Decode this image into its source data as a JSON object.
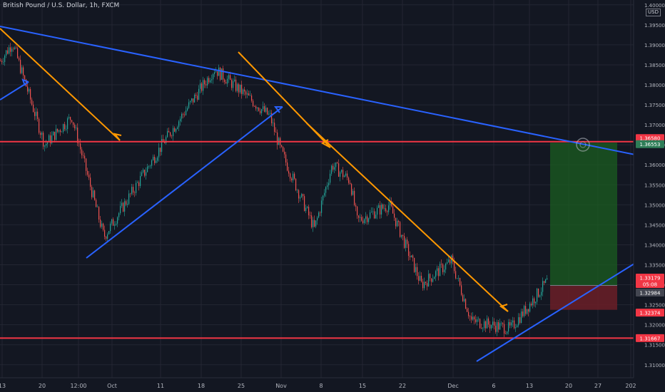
{
  "header": {
    "title": "British Pound / U.S. Dollar, 1h, FXCM",
    "currency": "USD"
  },
  "chart_data": {
    "type": "candlestick",
    "ylim": [
      1.308,
      1.4005
    ],
    "y_ticks": [
      "1.40000",
      "1.39500",
      "1.39000",
      "1.38500",
      "1.38000",
      "1.37500",
      "1.37000",
      "1.36500",
      "1.36000",
      "1.35500",
      "1.35000",
      "1.34500",
      "1.34000",
      "1.33500",
      "1.33000",
      "1.32500",
      "1.32000",
      "1.31500",
      "1.31000"
    ],
    "x_ticks": [
      "13",
      "20",
      "12:00",
      "Oct",
      "11",
      "18",
      "25",
      "Nov",
      "8",
      "15",
      "22",
      "Dec",
      "6",
      "13",
      "20",
      "27",
      "202"
    ],
    "price_path": [
      [
        1.386,
        "13"
      ],
      [
        1.3905,
        "13+"
      ],
      [
        1.365,
        "20"
      ],
      [
        1.372,
        "12:00"
      ],
      [
        1.342,
        "Oct-"
      ],
      [
        1.366,
        "11"
      ],
      [
        1.384,
        "18"
      ],
      [
        1.378,
        "25"
      ],
      [
        1.372,
        "Nov-"
      ],
      [
        1.364,
        "Nov"
      ],
      [
        1.344,
        "Nov+"
      ],
      [
        1.36,
        "8"
      ],
      [
        1.356,
        "15"
      ],
      [
        1.346,
        "15+"
      ],
      [
        1.35,
        "22"
      ],
      [
        1.33,
        "22+"
      ],
      [
        1.336,
        "Dec"
      ],
      [
        1.321,
        "6"
      ],
      [
        1.319,
        "13"
      ],
      [
        1.331,
        "13+"
      ]
    ],
    "horizontal_levels": [
      {
        "price": 1.3658,
        "label": "1.36580",
        "color": "#f23645"
      },
      {
        "price": 1.31667,
        "label": "1.31667",
        "color": "#f23645"
      }
    ],
    "price_labels": [
      {
        "label": "1.36553",
        "color": "#2e7d57"
      },
      {
        "label": "1.33179",
        "sublabel": "05:08",
        "color": "#f23645"
      },
      {
        "label": "1.32984",
        "color": "#434651"
      },
      {
        "label": "1.32374",
        "color": "#f23645"
      }
    ],
    "position_tool": {
      "entry": 1.32984,
      "target": 1.36553,
      "stop": 1.32374,
      "profit_color": "#1b5e20",
      "loss_color": "#6b1f27"
    },
    "colors": {
      "up": "#26a69a",
      "down": "#ef5350",
      "background": "#131722",
      "grid": "#232632",
      "axis_text": "#b2b5be",
      "trend_blue": "#2962ff",
      "trend_orange": "#ff9800"
    }
  }
}
